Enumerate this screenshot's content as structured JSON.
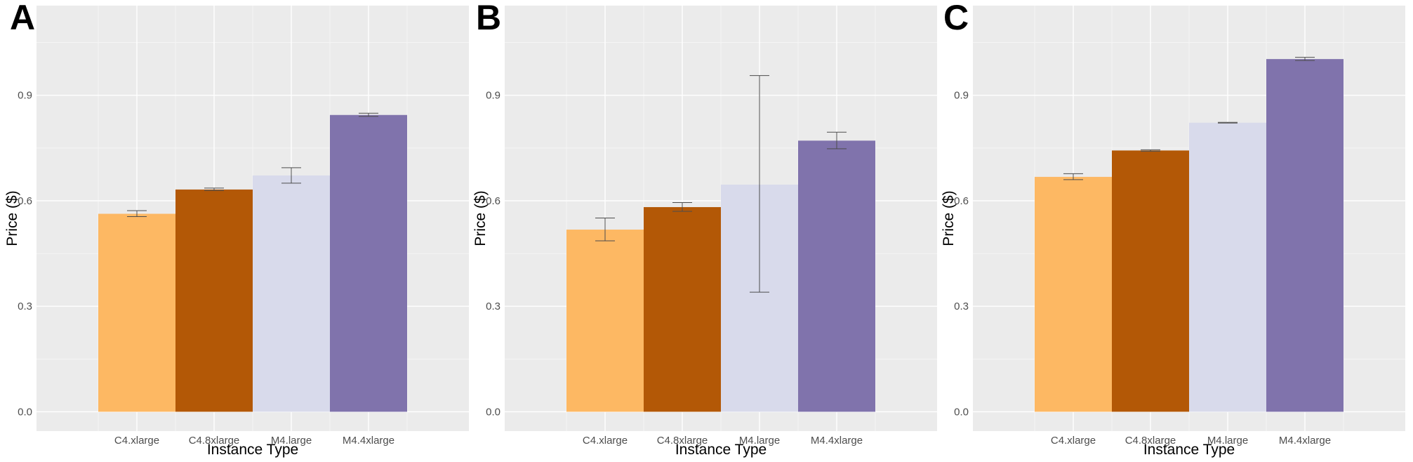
{
  "chart_data": [
    {
      "panel": "A",
      "type": "bar",
      "categories": [
        "C4.xlarge",
        "C4.8xlarge",
        "M4.large",
        "M4.4xlarge"
      ],
      "values": [
        0.563,
        0.632,
        0.672,
        0.844
      ],
      "error_low": [
        0.555,
        0.629,
        0.65,
        0.84
      ],
      "error_high": [
        0.572,
        0.636,
        0.694,
        0.849
      ],
      "colors": [
        "#fdb863",
        "#b35806",
        "#d8daeb",
        "#8073ac"
      ],
      "xlabel": "Instance Type",
      "ylabel": "Price ($)",
      "yticks": [
        0.0,
        0.3,
        0.6,
        0.9
      ],
      "ytick_labels": [
        "0.0",
        "0.3",
        "0.6",
        "0.9"
      ],
      "ylim": [
        -0.055,
        1.155
      ]
    },
    {
      "panel": "B",
      "type": "bar",
      "categories": [
        "C4.xlarge",
        "C4.8xlarge",
        "M4.large",
        "M4.4xlarge"
      ],
      "values": [
        0.518,
        0.582,
        0.646,
        0.771
      ],
      "error_low": [
        0.486,
        0.57,
        0.34,
        0.748
      ],
      "error_high": [
        0.551,
        0.595,
        0.956,
        0.795
      ],
      "colors": [
        "#fdb863",
        "#b35806",
        "#d8daeb",
        "#8073ac"
      ],
      "xlabel": "Instance Type",
      "ylabel": "Price ($)",
      "yticks": [
        0.0,
        0.3,
        0.6,
        0.9
      ],
      "ytick_labels": [
        "0.0",
        "0.3",
        "0.6",
        "0.9"
      ],
      "ylim": [
        -0.055,
        1.155
      ]
    },
    {
      "panel": "C",
      "type": "bar",
      "categories": [
        "C4.xlarge",
        "C4.8xlarge",
        "M4.large",
        "M4.4xlarge"
      ],
      "values": [
        0.668,
        0.743,
        0.822,
        1.003
      ],
      "error_low": [
        0.66,
        0.741,
        0.821,
        0.999
      ],
      "error_high": [
        0.677,
        0.745,
        0.823,
        1.008
      ],
      "colors": [
        "#fdb863",
        "#b35806",
        "#d8daeb",
        "#8073ac"
      ],
      "xlabel": "Instance Type",
      "ylabel": "Price ($)",
      "yticks": [
        0.0,
        0.3,
        0.6,
        0.9
      ],
      "ytick_labels": [
        "0.0",
        "0.3",
        "0.6",
        "0.9"
      ],
      "ylim": [
        -0.055,
        1.155
      ]
    }
  ]
}
